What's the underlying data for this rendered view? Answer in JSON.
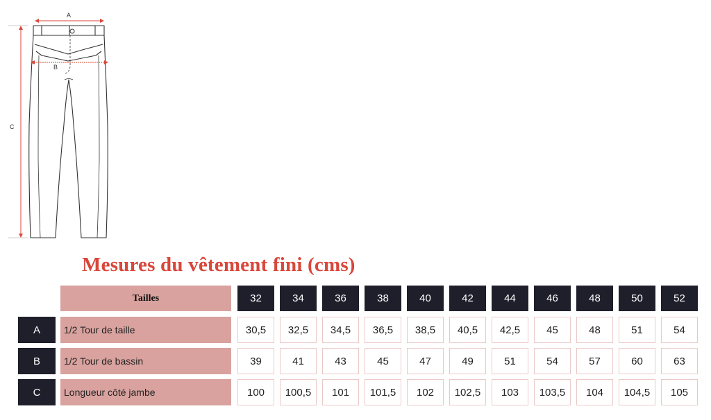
{
  "diagram": {
    "labels": {
      "a": "A",
      "b": "B",
      "c": "C"
    },
    "accent_color": "#d9463a"
  },
  "title": "Mesures du vêtement fini (cms)",
  "table": {
    "size_header": "Tailles",
    "sizes": [
      "32",
      "34",
      "36",
      "38",
      "40",
      "42",
      "44",
      "46",
      "48",
      "50",
      "52"
    ],
    "rows": [
      {
        "letter": "A",
        "label": "1/2 Tour de taille",
        "values": [
          "30,5",
          "32,5",
          "34,5",
          "36,5",
          "38,5",
          "40,5",
          "42,5",
          "45",
          "48",
          "51",
          "54"
        ]
      },
      {
        "letter": "B",
        "label": "1/2 Tour de bassin",
        "values": [
          "39",
          "41",
          "43",
          "45",
          "47",
          "49",
          "51",
          "54",
          "57",
          "60",
          "63"
        ]
      },
      {
        "letter": "C",
        "label": "Longueur côté jambe",
        "values": [
          "100",
          "100,5",
          "101",
          "101,5",
          "102",
          "102,5",
          "103",
          "103,5",
          "104",
          "104,5",
          "105"
        ]
      }
    ],
    "colors": {
      "dark": "#1f1f2b",
      "pink": "#d9a29e",
      "border": "#e9c9c6"
    }
  }
}
